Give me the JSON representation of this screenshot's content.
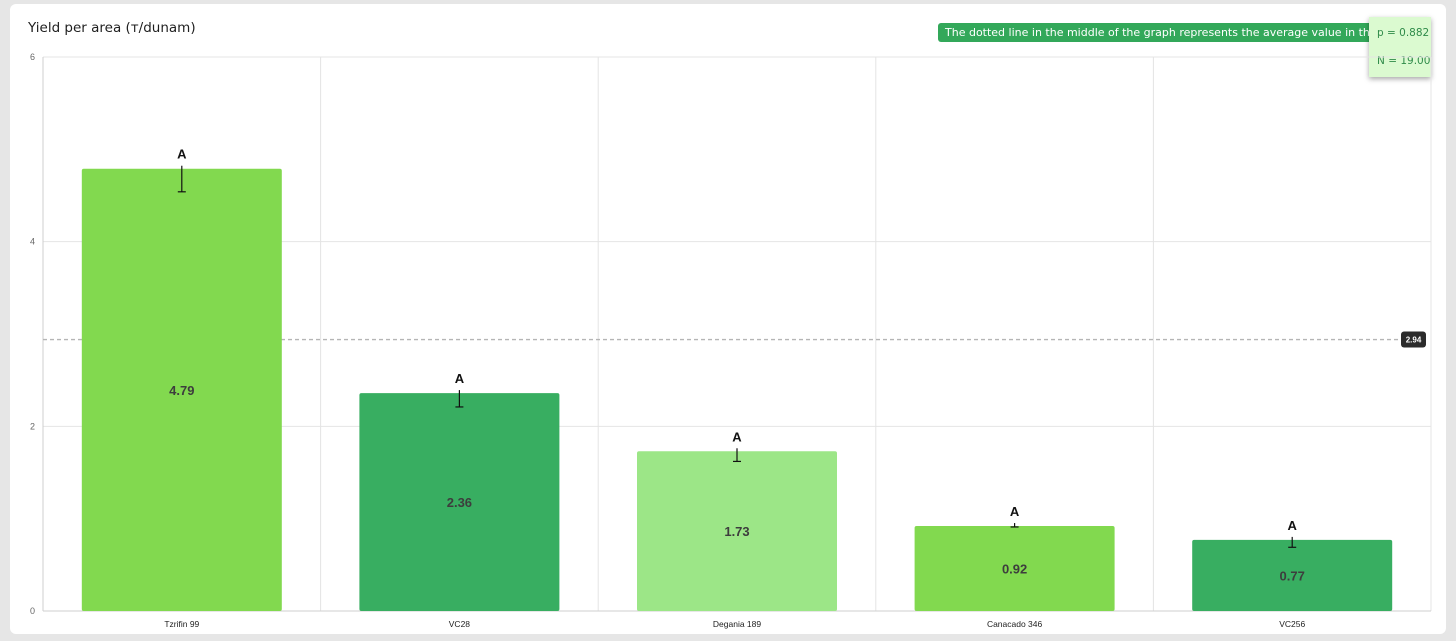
{
  "header": {
    "title": "Yield per area (т/dunam)",
    "note": "The dotted line in the middle of the graph represents the average value in the bl",
    "p_value": "p = 0.882",
    "n_value": "N = 19.00"
  },
  "chart_data": {
    "type": "bar",
    "title": "Yield per area (т/dunam)",
    "xlabel": "",
    "ylabel": "",
    "ylim": [
      0,
      6
    ],
    "yticks": [
      0,
      2,
      4,
      6
    ],
    "grid": true,
    "categories": [
      "Tzrifin 99",
      "VC28",
      "Degania 189",
      "Canacado 346",
      "VC256"
    ],
    "values": [
      4.79,
      2.36,
      1.73,
      0.92,
      0.77
    ],
    "value_labels": [
      "4.79",
      "2.36",
      "1.73",
      "0.92",
      "0.77"
    ],
    "error_low": [
      4.54,
      2.21,
      1.62,
      0.91,
      0.69
    ],
    "error_high": [
      4.79,
      2.36,
      1.73,
      0.92,
      0.77
    ],
    "group_letters": [
      "A",
      "A",
      "A",
      "A",
      "A"
    ],
    "bar_colors": [
      "#82d94f",
      "#38ae61",
      "#9ce687",
      "#82d94f",
      "#38ae61"
    ],
    "average": 2.94,
    "average_label": "2.94"
  }
}
